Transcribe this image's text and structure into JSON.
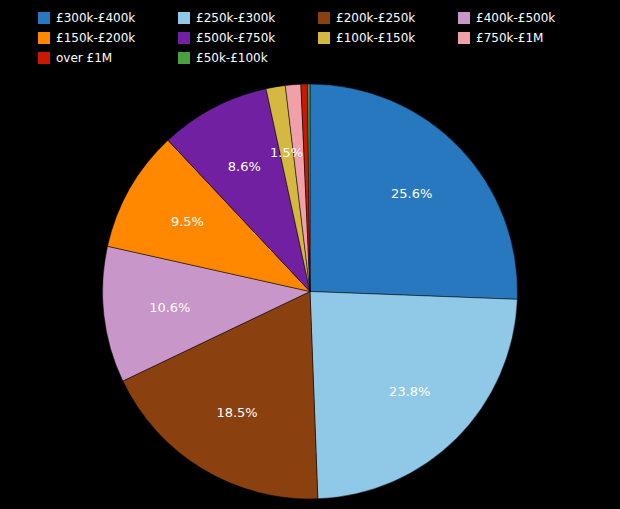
{
  "chart_data": {
    "type": "pie",
    "categories": [
      "£300k-£400k",
      "£250k-£300k",
      "£200k-£250k",
      "£400k-£500k",
      "£150k-£200k",
      "£500k-£750k",
      "£100k-£150k",
      "£750k-£1M",
      "over £1M",
      "£50k-£100k"
    ],
    "values": [
      25.6,
      23.8,
      18.5,
      10.6,
      9.5,
      8.6,
      1.5,
      1.2,
      0.5,
      0.2
    ],
    "value_labels": [
      "25.6%",
      "23.8%",
      "18.5%",
      "10.6%",
      "9.5%",
      "8.6%",
      "1.5%",
      null,
      null,
      null
    ],
    "colors": [
      "#2878c0",
      "#90c8e8",
      "#8b4010",
      "#c896c8",
      "#ff8800",
      "#7020a0",
      "#d4b840",
      "#f0a0a8",
      "#cc1800",
      "#48a040"
    ],
    "data_labels": true,
    "legend": "top"
  }
}
